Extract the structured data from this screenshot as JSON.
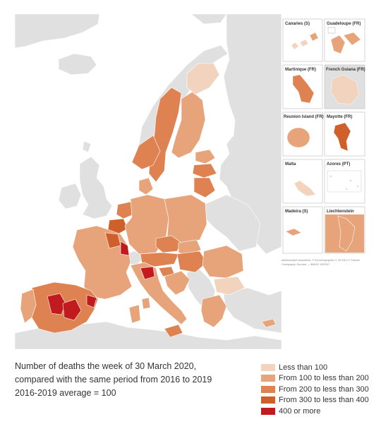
{
  "map": {
    "insets": [
      {
        "label": "Canaries (S)"
      },
      {
        "label": "Guadeloupe (FR)"
      },
      {
        "label": "Martinique (FR)"
      },
      {
        "label": "French Guiana (FR)"
      },
      {
        "label": "Reunion Island (FR)"
      },
      {
        "label": "Mayotte (FR)"
      },
      {
        "label": "Malta"
      },
      {
        "label": "Azores (PT)"
      },
      {
        "label": "Madeira (S)"
      },
      {
        "label": "Liechtenstein"
      }
    ],
    "attribution_line1": "Administrative boundaries: © EuroGeographics © UN-FAO © Turkstat",
    "attribution_line2": "Cartography: Eurostat — IMAGE, 06/2020"
  },
  "caption": {
    "line1": "Number of deaths the week of 30 March 2020,",
    "line2": "compared with the same period from 2016 to 2019",
    "line3": "2016-2019 average = 100"
  },
  "legend": {
    "items": [
      {
        "label": "Less than 100",
        "color": "#f2d3bd"
      },
      {
        "label": "From 100 to less than 200",
        "color": "#e7a47b"
      },
      {
        "label": "From 200 to less than 300",
        "color": "#de8251"
      },
      {
        "label": "From 300 to less than 400",
        "color": "#d0602a"
      },
      {
        "label": "400 or more",
        "color": "#c11b1f"
      }
    ]
  },
  "colors": {
    "sea": "#ffffff",
    "non_eu_land": "#e0e0e0",
    "no_data": "#d9d9d9",
    "border": "#ffffff"
  }
}
